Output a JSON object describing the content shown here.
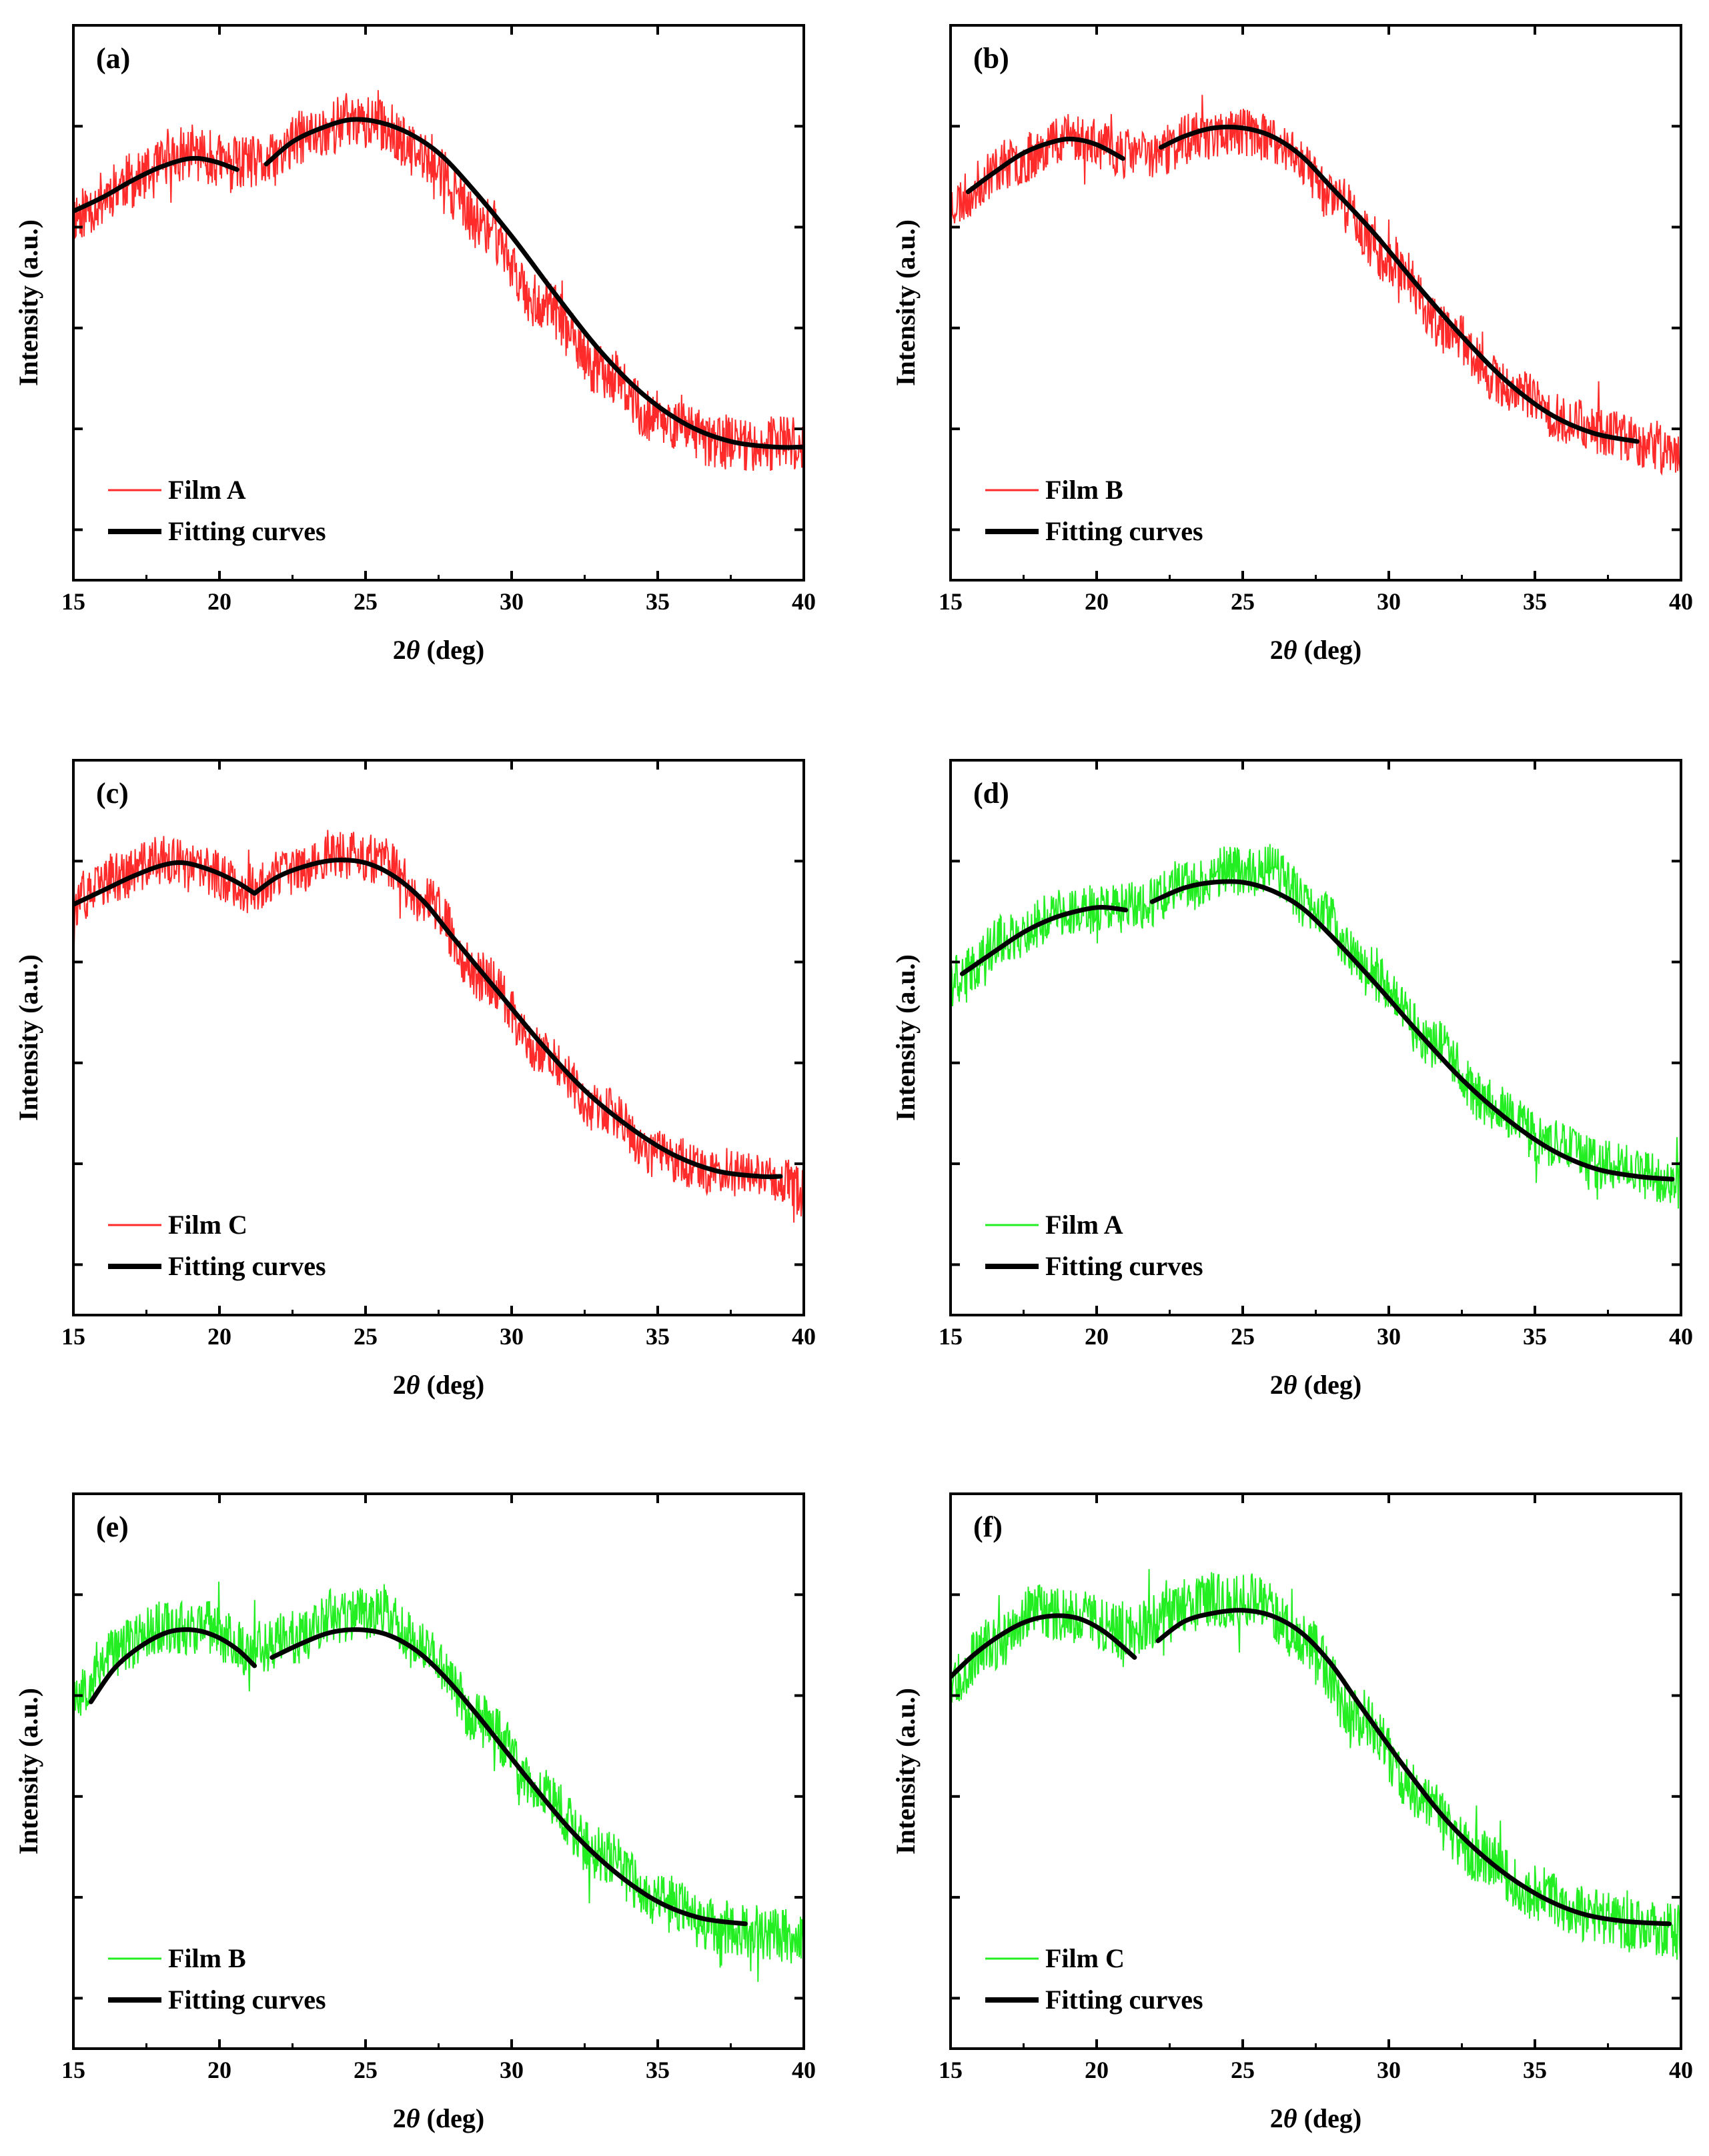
{
  "chart_data": [
    {
      "type": "line",
      "panel": "(a)",
      "xlabel": "2θ (deg)",
      "ylabel": "Intensity (a.u.)",
      "xlim": [
        15,
        40
      ],
      "ylim": [
        0,
        1
      ],
      "x_ticks": [
        "15",
        "20",
        "25",
        "30",
        "35",
        "40"
      ],
      "y_ticks_labeled": false,
      "legend": {
        "position": "bottom-left",
        "entries": [
          "Film A",
          "Fitting curves"
        ]
      },
      "series": [
        {
          "name": "Film A",
          "color": "#ff2a2a",
          "kind": "noisy-measurement",
          "noise": 0.05,
          "seed": 11,
          "x": [
            15,
            17,
            19,
            20.5,
            21.5,
            23,
            24.5,
            25.5,
            27,
            29,
            31,
            33,
            35,
            37,
            38.5,
            40
          ],
          "y": [
            0.66,
            0.72,
            0.77,
            0.75,
            0.75,
            0.8,
            0.83,
            0.82,
            0.76,
            0.64,
            0.5,
            0.38,
            0.29,
            0.25,
            0.245,
            0.245
          ]
        },
        {
          "name": "Fitting curves",
          "color": "#000000",
          "kind": "fit",
          "segments": [
            {
              "x": [
                15,
                16,
                17,
                18,
                19,
                19.8,
                20.6
              ],
              "y": [
                0.665,
                0.69,
                0.72,
                0.745,
                0.76,
                0.755,
                0.74
              ]
            },
            {
              "x": [
                21.6,
                22.5,
                23.5,
                24.5,
                25.5,
                26.5,
                27.5,
                28.5,
                30,
                31.5,
                33,
                34.5,
                36,
                37.5,
                39,
                40
              ],
              "y": [
                0.75,
                0.79,
                0.815,
                0.83,
                0.825,
                0.805,
                0.77,
                0.715,
                0.62,
                0.515,
                0.415,
                0.335,
                0.28,
                0.25,
                0.24,
                0.24
              ]
            }
          ]
        }
      ]
    },
    {
      "type": "line",
      "panel": "(b)",
      "xlabel": "2θ (deg)",
      "ylabel": "Intensity (a.u.)",
      "xlim": [
        15,
        40
      ],
      "ylim": [
        0,
        1
      ],
      "x_ticks": [
        "15",
        "20",
        "25",
        "30",
        "35",
        "40"
      ],
      "y_ticks_labeled": false,
      "legend": {
        "position": "bottom-left",
        "entries": [
          "Film B",
          "Fitting curves"
        ]
      },
      "series": [
        {
          "name": "Film B",
          "color": "#ff2a2a",
          "kind": "noisy-measurement",
          "noise": 0.045,
          "seed": 23,
          "x": [
            15,
            17,
            19,
            21,
            22,
            23.5,
            25,
            26.5,
            28,
            30,
            32,
            34,
            36,
            38,
            39,
            40
          ],
          "y": [
            0.68,
            0.75,
            0.8,
            0.77,
            0.77,
            0.8,
            0.81,
            0.78,
            0.7,
            0.58,
            0.45,
            0.35,
            0.29,
            0.26,
            0.24,
            0.22
          ]
        },
        {
          "name": "Fitting curves",
          "color": "#000000",
          "kind": "fit",
          "segments": [
            {
              "x": [
                15.6,
                16.5,
                17.5,
                18.5,
                19.2,
                20,
                20.9
              ],
              "y": [
                0.7,
                0.735,
                0.77,
                0.79,
                0.795,
                0.785,
                0.76
              ]
            },
            {
              "x": [
                22.2,
                23,
                24,
                25,
                26,
                27,
                28,
                29.5,
                31,
                32.5,
                34,
                35.5,
                37,
                38.5
              ],
              "y": [
                0.78,
                0.8,
                0.815,
                0.815,
                0.8,
                0.765,
                0.71,
                0.625,
                0.53,
                0.44,
                0.36,
                0.3,
                0.265,
                0.25
              ]
            }
          ]
        }
      ]
    },
    {
      "type": "line",
      "panel": "(c)",
      "xlabel": "2θ (deg)",
      "ylabel": "Intensity (a.u.)",
      "xlim": [
        15,
        40
      ],
      "ylim": [
        0,
        1
      ],
      "x_ticks": [
        "15",
        "20",
        "25",
        "30",
        "35",
        "40"
      ],
      "y_ticks_labeled": false,
      "legend": {
        "position": "bottom-left",
        "entries": [
          "Film C",
          "Fitting curves"
        ]
      },
      "series": [
        {
          "name": "Film C",
          "color": "#ff2a2a",
          "kind": "noisy-measurement",
          "noise": 0.045,
          "seed": 37,
          "x": [
            15,
            16.5,
            18,
            19.5,
            21,
            22.5,
            24,
            25.5,
            27,
            29,
            31,
            33,
            35,
            37,
            39,
            40
          ],
          "y": [
            0.74,
            0.79,
            0.82,
            0.8,
            0.77,
            0.8,
            0.83,
            0.82,
            0.75,
            0.61,
            0.48,
            0.37,
            0.29,
            0.26,
            0.25,
            0.22
          ]
        },
        {
          "name": "Fitting curves",
          "color": "#000000",
          "kind": "fit",
          "segments": [
            {
              "x": [
                15,
                16,
                17,
                18,
                18.8,
                19.8,
                20.6,
                21.2
              ],
              "y": [
                0.74,
                0.765,
                0.79,
                0.81,
                0.815,
                0.8,
                0.78,
                0.76
              ]
            },
            {
              "x": [
                21.2,
                22,
                23,
                24,
                25,
                26,
                27,
                28,
                29.5,
                31,
                32.5,
                34,
                35.5,
                37,
                38.5,
                39.2
              ],
              "y": [
                0.76,
                0.79,
                0.81,
                0.82,
                0.815,
                0.79,
                0.745,
                0.68,
                0.585,
                0.49,
                0.405,
                0.34,
                0.29,
                0.26,
                0.25,
                0.25
              ]
            }
          ]
        }
      ]
    },
    {
      "type": "line",
      "panel": "(d)",
      "xlabel": "2θ (deg)",
      "ylabel": "Intensity (a.u.)",
      "xlim": [
        15,
        40
      ],
      "ylim": [
        0,
        1
      ],
      "x_ticks": [
        "15",
        "20",
        "25",
        "30",
        "35",
        "40"
      ],
      "y_ticks_labeled": false,
      "legend": {
        "position": "bottom-left",
        "entries": [
          "Film A",
          "Fitting curves"
        ]
      },
      "series": [
        {
          "name": "Film A",
          "color": "#22ee22",
          "kind": "noisy-measurement",
          "noise": 0.045,
          "seed": 41,
          "x": [
            15,
            17,
            19,
            20.5,
            21.5,
            23,
            24.5,
            26,
            27.5,
            29.5,
            31.5,
            33.5,
            35.5,
            37.5,
            39,
            40
          ],
          "y": [
            0.6,
            0.68,
            0.73,
            0.73,
            0.74,
            0.77,
            0.8,
            0.8,
            0.73,
            0.61,
            0.49,
            0.38,
            0.31,
            0.27,
            0.25,
            0.24
          ]
        },
        {
          "name": "Fitting curves",
          "color": "#000000",
          "kind": "fit",
          "segments": [
            {
              "x": [
                15.4,
                16.5,
                17.5,
                18.5,
                19.5,
                20.2,
                21
              ],
              "y": [
                0.615,
                0.655,
                0.69,
                0.715,
                0.73,
                0.735,
                0.73
              ]
            },
            {
              "x": [
                21.9,
                23,
                24,
                25,
                26,
                27,
                28,
                29.5,
                31,
                32.5,
                34,
                35.5,
                37,
                38.5,
                39.7
              ],
              "y": [
                0.745,
                0.77,
                0.78,
                0.78,
                0.765,
                0.735,
                0.685,
                0.6,
                0.51,
                0.425,
                0.355,
                0.3,
                0.265,
                0.25,
                0.245
              ]
            }
          ]
        }
      ]
    },
    {
      "type": "line",
      "panel": "(e)",
      "xlabel": "2θ (deg)",
      "ylabel": "Intensity (a.u.)",
      "xlim": [
        15,
        40
      ],
      "ylim": [
        0,
        1
      ],
      "x_ticks": [
        "15",
        "20",
        "25",
        "30",
        "35",
        "40"
      ],
      "y_ticks_labeled": false,
      "legend": {
        "position": "bottom-left",
        "entries": [
          "Film B",
          "Fitting curves"
        ]
      },
      "series": [
        {
          "name": "Film B",
          "color": "#22ee22",
          "kind": "noisy-measurement",
          "noise": 0.05,
          "seed": 53,
          "x": [
            15,
            16.5,
            18,
            19.5,
            21,
            22.5,
            24,
            25.5,
            27,
            29,
            31,
            33,
            35,
            37,
            38.5,
            40
          ],
          "y": [
            0.64,
            0.72,
            0.76,
            0.76,
            0.72,
            0.74,
            0.78,
            0.79,
            0.72,
            0.59,
            0.46,
            0.35,
            0.27,
            0.22,
            0.21,
            0.2
          ]
        },
        {
          "name": "Fitting curves",
          "color": "#000000",
          "kind": "fit",
          "segments": [
            {
              "x": [
                15.6,
                16.4,
                17.3,
                18.2,
                19,
                19.8,
                20.6,
                21.2
              ],
              "y": [
                0.625,
                0.685,
                0.725,
                0.75,
                0.755,
                0.745,
                0.72,
                0.69
              ]
            },
            {
              "x": [
                21.8,
                22.8,
                23.8,
                24.8,
                25.8,
                26.8,
                27.8,
                29,
                30.5,
                32,
                33.5,
                35,
                36.5,
                38
              ],
              "y": [
                0.705,
                0.73,
                0.75,
                0.755,
                0.745,
                0.715,
                0.665,
                0.59,
                0.49,
                0.395,
                0.32,
                0.265,
                0.235,
                0.225
              ]
            }
          ]
        }
      ]
    },
    {
      "type": "line",
      "panel": "(f)",
      "xlabel": "2θ (deg)",
      "ylabel": "Intensity (a.u.)",
      "xlim": [
        15,
        40
      ],
      "ylim": [
        0,
        1
      ],
      "x_ticks": [
        "15",
        "20",
        "25",
        "30",
        "35",
        "40"
      ],
      "y_ticks_labeled": false,
      "legend": {
        "position": "bottom-left",
        "entries": [
          "Film C",
          "Fitting curves"
        ]
      },
      "series": [
        {
          "name": "Film C",
          "color": "#22ee22",
          "kind": "noisy-measurement",
          "noise": 0.05,
          "seed": 67,
          "x": [
            15,
            16.5,
            18,
            19.5,
            21,
            22.5,
            24,
            25.5,
            27,
            29,
            31,
            33,
            35,
            37,
            38.5,
            40
          ],
          "y": [
            0.67,
            0.73,
            0.79,
            0.78,
            0.75,
            0.78,
            0.81,
            0.81,
            0.74,
            0.6,
            0.46,
            0.35,
            0.28,
            0.24,
            0.22,
            0.21
          ]
        },
        {
          "name": "Fitting curves",
          "color": "#000000",
          "kind": "fit",
          "segments": [
            {
              "x": [
                15,
                15.8,
                16.7,
                17.6,
                18.5,
                19.4,
                20.3,
                21.3
              ],
              "y": [
                0.67,
                0.71,
                0.745,
                0.77,
                0.78,
                0.775,
                0.75,
                0.705
              ]
            },
            {
              "x": [
                22.1,
                23,
                24,
                25,
                26,
                27,
                28,
                29,
                30.5,
                32,
                33.5,
                35,
                36.5,
                38,
                39.6
              ],
              "y": [
                0.735,
                0.77,
                0.785,
                0.79,
                0.78,
                0.75,
                0.695,
                0.62,
                0.51,
                0.41,
                0.335,
                0.28,
                0.245,
                0.23,
                0.225
              ]
            }
          ]
        }
      ]
    }
  ]
}
